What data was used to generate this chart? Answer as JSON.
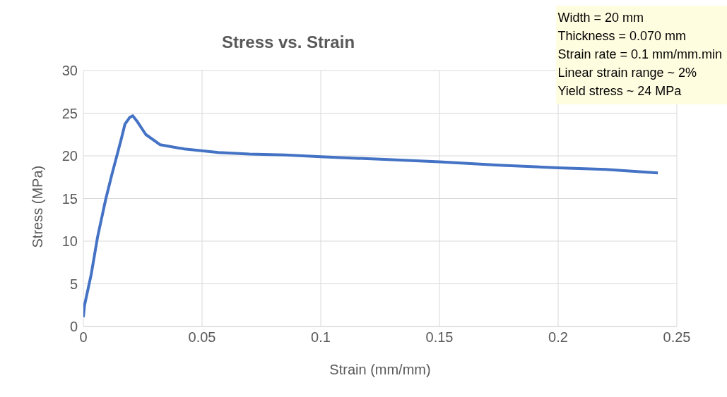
{
  "chart_data": {
    "type": "line",
    "title": "Stress vs. Strain",
    "xlabel": "Strain (mm/mm)",
    "ylabel": "Stress (MPa)",
    "x": [
      0,
      0.0005,
      0.0033,
      0.006,
      0.0094,
      0.012,
      0.014,
      0.016,
      0.0175,
      0.0195,
      0.0208,
      0.0225,
      0.0263,
      0.0324,
      0.0426,
      0.0569,
      0.07,
      0.085,
      0.1,
      0.125,
      0.15,
      0.175,
      0.2,
      0.22,
      0.242
    ],
    "series": [
      {
        "color": "#4472c4",
        "values": [
          1.1,
          2.5,
          6.1,
          10.5,
          14.9,
          17.8,
          19.9,
          22.0,
          23.7,
          24.5,
          24.7,
          24.1,
          22.5,
          21.3,
          20.8,
          20.4,
          20.2,
          20.1,
          19.9,
          19.6,
          19.3,
          18.9,
          18.6,
          18.4,
          18.0
        ]
      }
    ],
    "xlim": [
      0,
      0.25
    ],
    "xticks": [
      0,
      0.05,
      0.1,
      0.15,
      0.2,
      0.25
    ],
    "ylim": [
      0,
      30
    ],
    "yticks": [
      0,
      5,
      10,
      15,
      20,
      25,
      30
    ],
    "grid": true,
    "legend": false,
    "marker": "none",
    "line_style": "solid",
    "annotations": [
      "Width = 20 mm",
      "Thickness = 0.070 mm",
      "Strain rate  = 0.1 mm/mm.min",
      "Linear strain range ~ 2%",
      "Yield stress ~ 24 MPa"
    ]
  }
}
